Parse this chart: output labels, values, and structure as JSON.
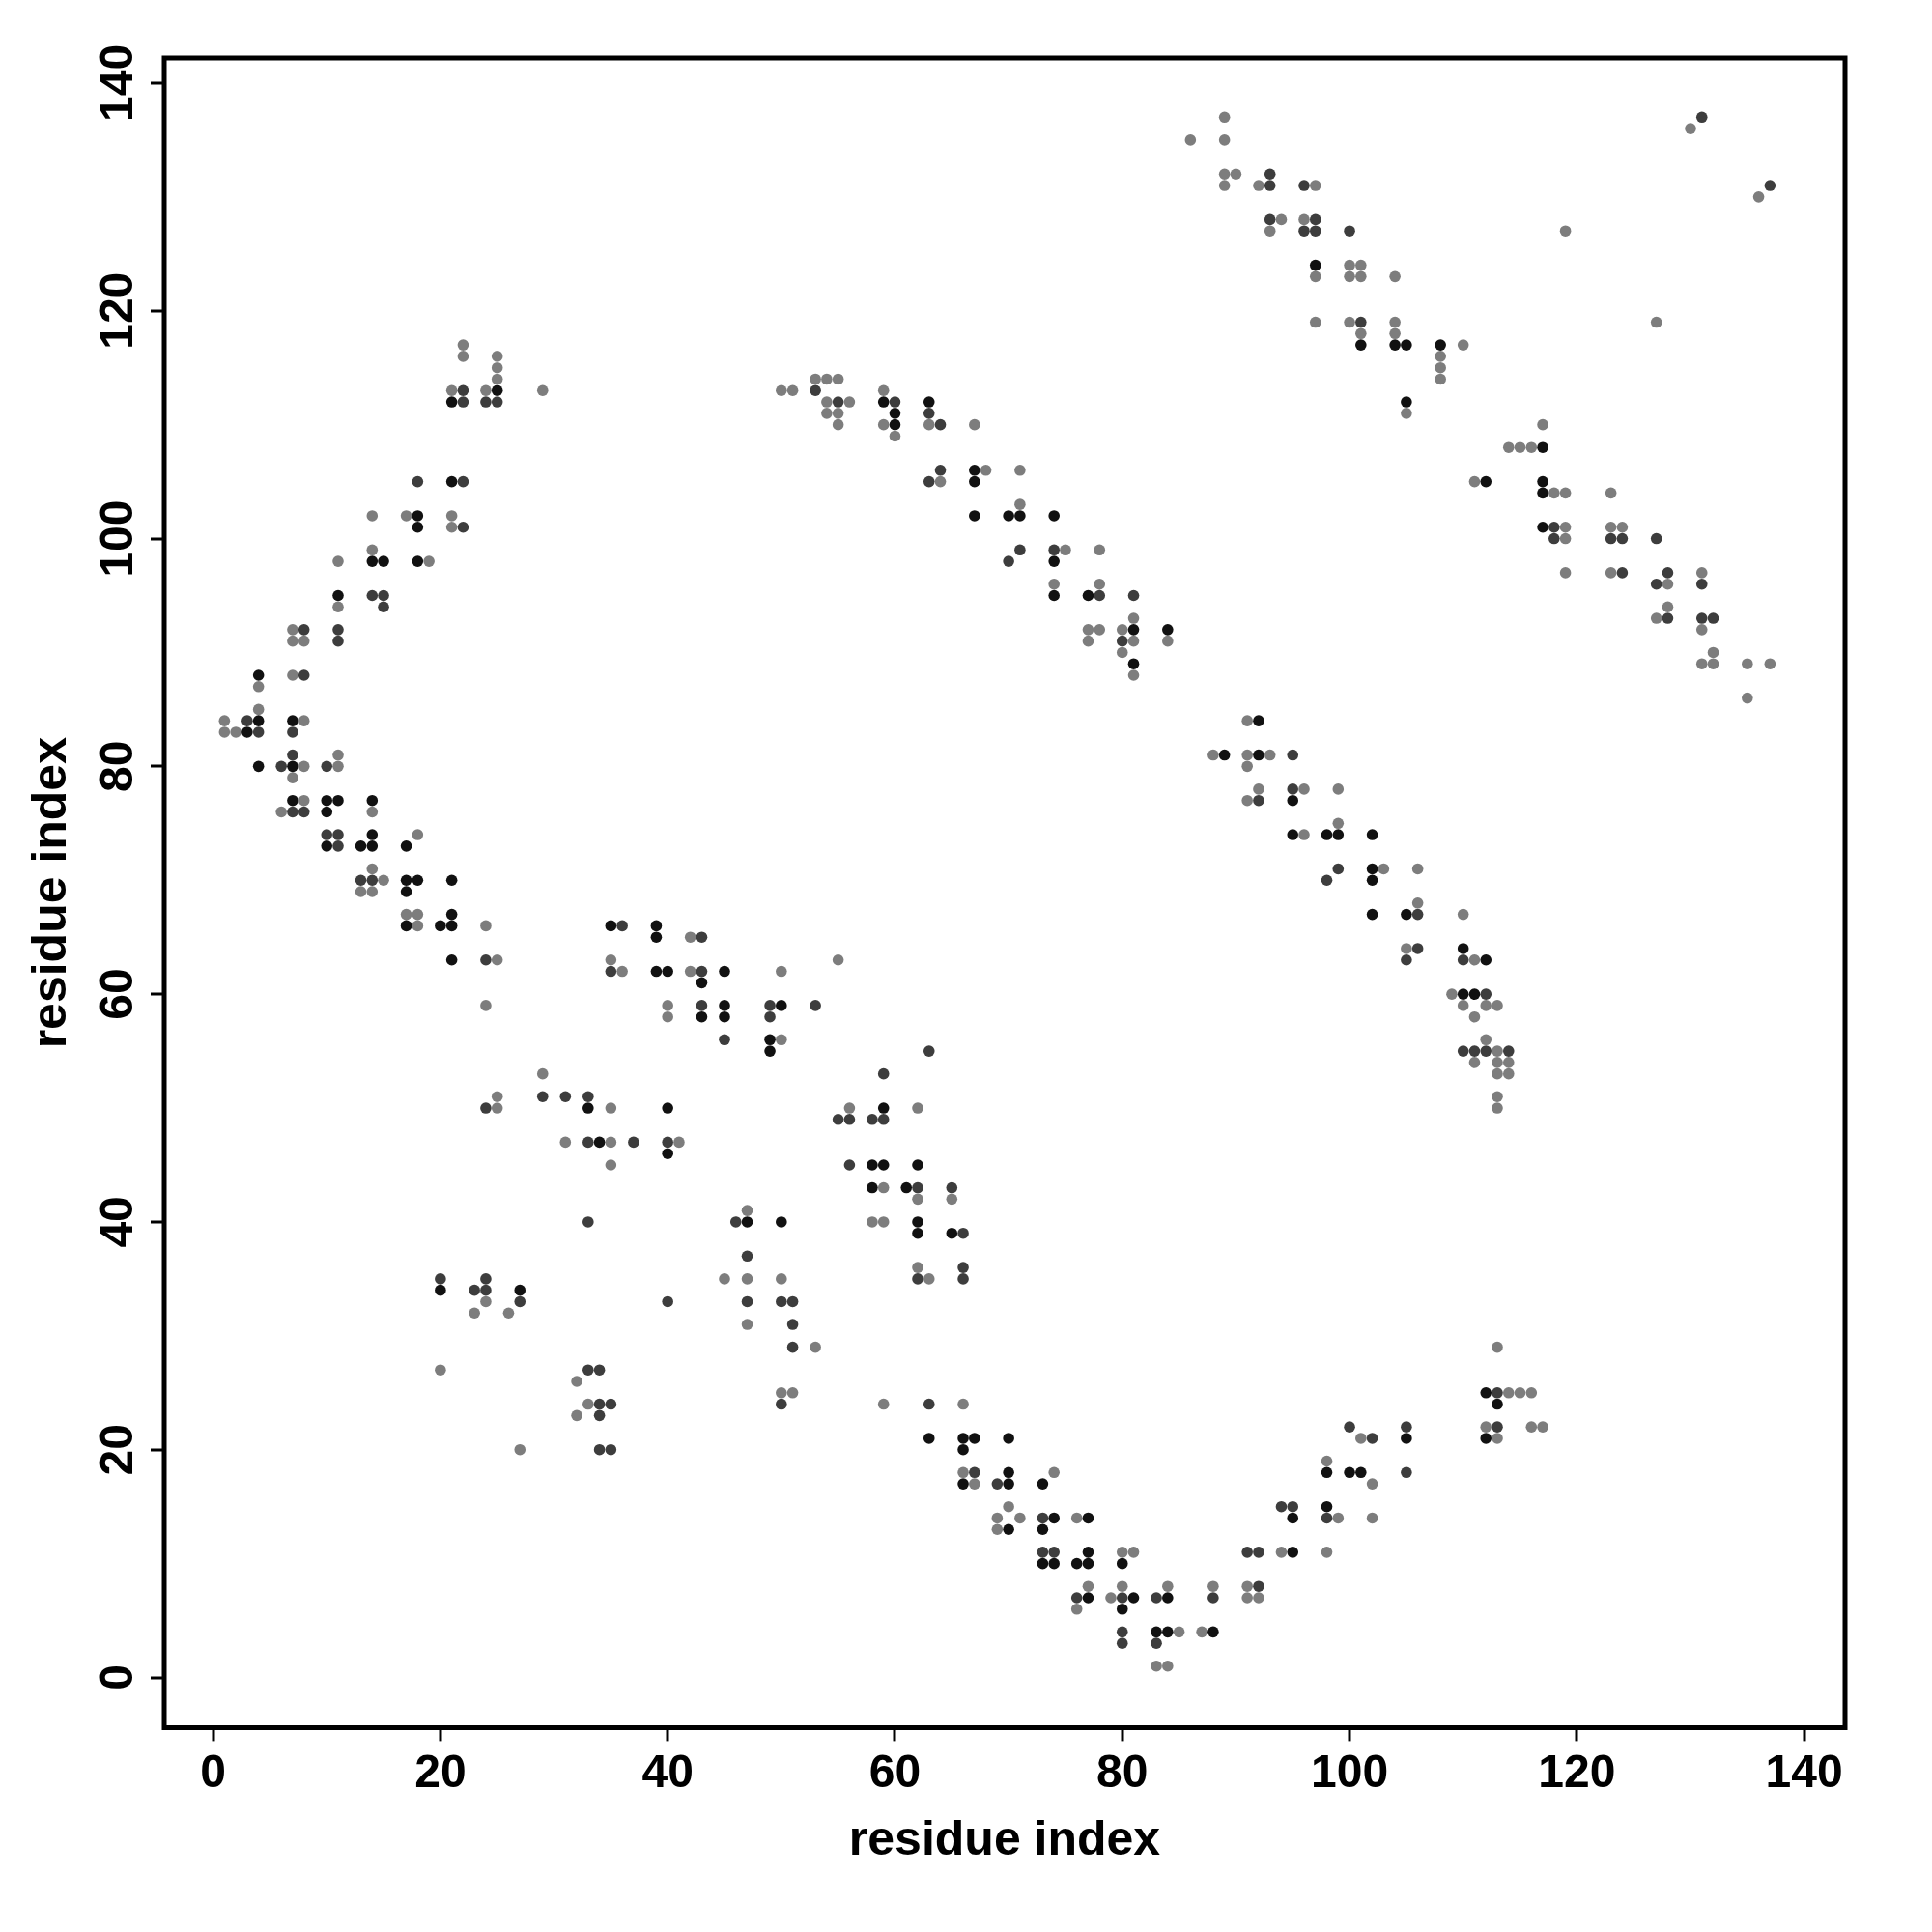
{
  "chart_data": {
    "type": "scatter",
    "xlabel": "residue index",
    "ylabel": "residue index",
    "xlim": [
      -4.3,
      143.6
    ],
    "ylim": [
      -4.4,
      142.2
    ],
    "xticks": [
      0,
      20,
      40,
      60,
      80,
      100,
      120,
      140
    ],
    "yticks": [
      0,
      20,
      40,
      60,
      80,
      100,
      120,
      140
    ],
    "grid": false,
    "legend": false,
    "marker": "circle",
    "series": [
      {
        "color": "#111111",
        "x": [
          3,
          4,
          4,
          4,
          7,
          11,
          14,
          15,
          18,
          18,
          18,
          21,
          21,
          25,
          7,
          7,
          10,
          11,
          10,
          10,
          14,
          13,
          14,
          14,
          17,
          17,
          18,
          17,
          17,
          20,
          21,
          21,
          21,
          21,
          35,
          39,
          39,
          39,
          40,
          43,
          43,
          45,
          45,
          45,
          50,
          49,
          49,
          33,
          34,
          40,
          40,
          20,
          27,
          47,
          50,
          59,
          58,
          59,
          58,
          61,
          62,
          62,
          62,
          65,
          63,
          66,
          67,
          66,
          66,
          70,
          70,
          70,
          70,
          73,
          74,
          73,
          73,
          74,
          77,
          76,
          77,
          77,
          77,
          80,
          81,
          80,
          84,
          83,
          84,
          88,
          95,
          95,
          98,
          98,
          100,
          101,
          105,
          112,
          113,
          112,
          59,
          60,
          60,
          63,
          67,
          67,
          67,
          70,
          71,
          74,
          74,
          74,
          77,
          81,
          81,
          84,
          89,
          92,
          92,
          95,
          95,
          98,
          99,
          102,
          102,
          102,
          102,
          105,
          110,
          112,
          110,
          111,
          97,
          101,
          104,
          105,
          105,
          108,
          112,
          117,
          117,
          117,
          117
        ],
        "values": [
          83,
          84,
          88,
          80,
          84,
          95,
          98,
          98,
          102,
          101,
          98,
          105,
          112,
          113,
          80,
          77,
          77,
          77,
          76,
          73,
          77,
          73,
          73,
          74,
          73,
          70,
          70,
          69,
          66,
          66,
          66,
          67,
          70,
          63,
          66,
          66,
          65,
          62,
          62,
          61,
          58,
          62,
          59,
          58,
          59,
          56,
          55,
          50,
          47,
          50,
          46,
          34,
          34,
          40,
          40,
          50,
          45,
          45,
          43,
          43,
          45,
          40,
          39,
          39,
          21,
          21,
          21,
          20,
          17,
          21,
          18,
          17,
          13,
          17,
          14,
          13,
          10,
          10,
          14,
          10,
          11,
          10,
          7,
          10,
          7,
          6,
          7,
          4,
          4,
          4,
          14,
          11,
          18,
          15,
          18,
          18,
          21,
          25,
          24,
          21,
          112,
          111,
          110,
          112,
          106,
          105,
          102,
          102,
          102,
          102,
          98,
          95,
          95,
          92,
          89,
          92,
          81,
          84,
          81,
          77,
          74,
          74,
          74,
          74,
          71,
          70,
          67,
          67,
          64,
          63,
          60,
          60,
          124,
          117,
          117,
          117,
          112,
          117,
          105,
          108,
          105,
          104,
          101
        ]
      },
      {
        "color": "#3d3d3d",
        "x": [
          3,
          4,
          7,
          8,
          8,
          11,
          11,
          14,
          15,
          15,
          18,
          22,
          22,
          22,
          22,
          24,
          25,
          6,
          7,
          7,
          8,
          10,
          10,
          11,
          11,
          13,
          14,
          24,
          36,
          35,
          43,
          43,
          43,
          45,
          49,
          49,
          53,
          24,
          29,
          31,
          33,
          33,
          37,
          40,
          20,
          23,
          24,
          24,
          27,
          33,
          33,
          34,
          34,
          35,
          34,
          34,
          35,
          46,
          47,
          47,
          40,
          50,
          51,
          51,
          51,
          50,
          55,
          56,
          58,
          59,
          59,
          56,
          62,
          62,
          63,
          65,
          66,
          66,
          66,
          63,
          67,
          69,
          73,
          73,
          74,
          76,
          80,
          80,
          80,
          83,
          83,
          88,
          91,
          92,
          92,
          94,
          95,
          98,
          100,
          102,
          105,
          105,
          113,
          113,
          53,
          55,
          60,
          63,
          64,
          63,
          64,
          71,
          70,
          74,
          78,
          80,
          81,
          92,
          95,
          95,
          98,
          99,
          106,
          106,
          105,
          110,
          112,
          110,
          111,
          112,
          114,
          93,
          93,
          93,
          96,
          97,
          96,
          97,
          100,
          101,
          118,
          118,
          123,
          124,
          124,
          127,
          128,
          127,
          128,
          131,
          131,
          132,
          131,
          137
        ],
        "values": [
          84,
          83,
          83,
          92,
          88,
          92,
          91,
          95,
          95,
          94,
          105,
          105,
          101,
          113,
          112,
          112,
          112,
          80,
          81,
          76,
          76,
          80,
          74,
          74,
          73,
          70,
          70,
          63,
          66,
          62,
          65,
          62,
          59,
          56,
          59,
          58,
          59,
          50,
          51,
          51,
          51,
          47,
          47,
          47,
          35,
          34,
          35,
          34,
          33,
          40,
          27,
          27,
          24,
          24,
          23,
          20,
          20,
          40,
          37,
          33,
          33,
          33,
          33,
          31,
          29,
          24,
          49,
          49,
          49,
          49,
          53,
          45,
          43,
          35,
          55,
          43,
          39,
          36,
          35,
          24,
          18,
          17,
          14,
          11,
          11,
          7,
          7,
          4,
          3,
          7,
          3,
          7,
          11,
          11,
          8,
          15,
          15,
          14,
          22,
          21,
          22,
          18,
          25,
          22,
          113,
          112,
          112,
          111,
          110,
          105,
          106,
          99,
          98,
          99,
          95,
          91,
          95,
          77,
          81,
          78,
          70,
          71,
          67,
          64,
          63,
          63,
          60,
          55,
          55,
          55,
          55,
          132,
          131,
          128,
          131,
          128,
          127,
          127,
          127,
          119,
          101,
          100,
          100,
          100,
          97,
          100,
          97,
          96,
          93,
          96,
          93,
          93,
          137,
          131
        ]
      },
      {
        "color": "#7d7d7d",
        "x": [
          1,
          1,
          2,
          4,
          4,
          7,
          7,
          8,
          7,
          8,
          11,
          11,
          14,
          14,
          17,
          19,
          21,
          21,
          21,
          22,
          22,
          24,
          25,
          25,
          25,
          29,
          8,
          6,
          7,
          8,
          11,
          11,
          14,
          14,
          13,
          14,
          15,
          18,
          17,
          18,
          18,
          24,
          25,
          24,
          35,
          36,
          40,
          40,
          42,
          42,
          50,
          50,
          55,
          25,
          25,
          29,
          31,
          35,
          35,
          35,
          41,
          24,
          23,
          26,
          20,
          27,
          32,
          32,
          33,
          47,
          45,
          47,
          47,
          50,
          53,
          50,
          51,
          56,
          59,
          58,
          59,
          62,
          62,
          62,
          63,
          65,
          59,
          66,
          66,
          67,
          69,
          70,
          71,
          69,
          74,
          76,
          77,
          76,
          79,
          80,
          81,
          80,
          84,
          83,
          84,
          85,
          87,
          88,
          91,
          91,
          92,
          94,
          98,
          99,
          98,
          101,
          102,
          102,
          112,
          113,
          113,
          114,
          115,
          116,
          116,
          117,
          50,
          51,
          54,
          55,
          53,
          54,
          54,
          55,
          56,
          55,
          59,
          59,
          60,
          63,
          64,
          67,
          68,
          71,
          71,
          75,
          74,
          78,
          78,
          77,
          78,
          77,
          80,
          81,
          81,
          80,
          81,
          84,
          88,
          91,
          91,
          93,
          91,
          92,
          91,
          96,
          96,
          99,
          99,
          103,
          106,
          106,
          105,
          110,
          111,
          109,
          110,
          111,
          112,
          113,
          111,
          112,
          113,
          113,
          114,
          113,
          114,
          113,
          113,
          86,
          89,
          89,
          89,
          90,
          89,
          92,
          94,
          93,
          97,
          96,
          97,
          97,
          100,
          101,
          100,
          101,
          100,
          101,
          104,
          104,
          104,
          105,
          108,
          108,
          108,
          110,
          111,
          114,
          115,
          116,
          117,
          118,
          119,
          119,
          119,
          119,
          123,
          123,
          124,
          123,
          128,
          128,
          127,
          131,
          131,
          132,
          131,
          132,
          135,
          137,
          135,
          119,
          127,
          130,
          136
        ],
        "values": [
          84,
          83,
          83,
          85,
          87,
          92,
          91,
          91,
          88,
          84,
          94,
          98,
          99,
          102,
          102,
          98,
          102,
          101,
          113,
          117,
          116,
          113,
          116,
          115,
          114,
          113,
          80,
          76,
          79,
          77,
          80,
          81,
          76,
          71,
          69,
          69,
          70,
          74,
          67,
          67,
          66,
          66,
          63,
          59,
          63,
          62,
          59,
          58,
          65,
          62,
          56,
          62,
          63,
          51,
          50,
          53,
          47,
          50,
          47,
          45,
          47,
          33,
          32,
          32,
          27,
          20,
          26,
          23,
          24,
          41,
          35,
          35,
          31,
          35,
          29,
          25,
          25,
          50,
          43,
          40,
          40,
          42,
          50,
          36,
          35,
          42,
          24,
          24,
          18,
          17,
          14,
          15,
          14,
          13,
          18,
          14,
          8,
          6,
          7,
          11,
          11,
          8,
          8,
          1,
          1,
          4,
          4,
          8,
          8,
          7,
          7,
          11,
          19,
          14,
          11,
          21,
          17,
          14,
          22,
          21,
          29,
          25,
          25,
          25,
          22,
          22,
          113,
          113,
          114,
          114,
          114,
          112,
          111,
          111,
          112,
          110,
          113,
          110,
          109,
          110,
          105,
          110,
          106,
          103,
          106,
          99,
          96,
          96,
          99,
          92,
          92,
          91,
          92,
          91,
          93,
          90,
          88,
          91,
          81,
          84,
          81,
          81,
          80,
          78,
          77,
          78,
          74,
          75,
          78,
          71,
          68,
          71,
          64,
          67,
          63,
          60,
          59,
          58,
          59,
          59,
          54,
          56,
          55,
          54,
          54,
          53,
          53,
          51,
          50,
          135,
          137,
          135,
          132,
          132,
          131,
          131,
          128,
          127,
          131,
          128,
          123,
          119,
          124,
          124,
          123,
          123,
          119,
          118,
          123,
          119,
          118,
          111,
          116,
          115,
          114,
          117,
          105,
          108,
          108,
          108,
          110,
          104,
          104,
          101,
          100,
          97,
          104,
          101,
          101,
          97,
          96,
          94,
          93,
          97,
          92,
          90,
          89,
          89,
          89,
          89,
          86,
          127,
          119,
          136,
          130
        ]
      }
    ]
  }
}
